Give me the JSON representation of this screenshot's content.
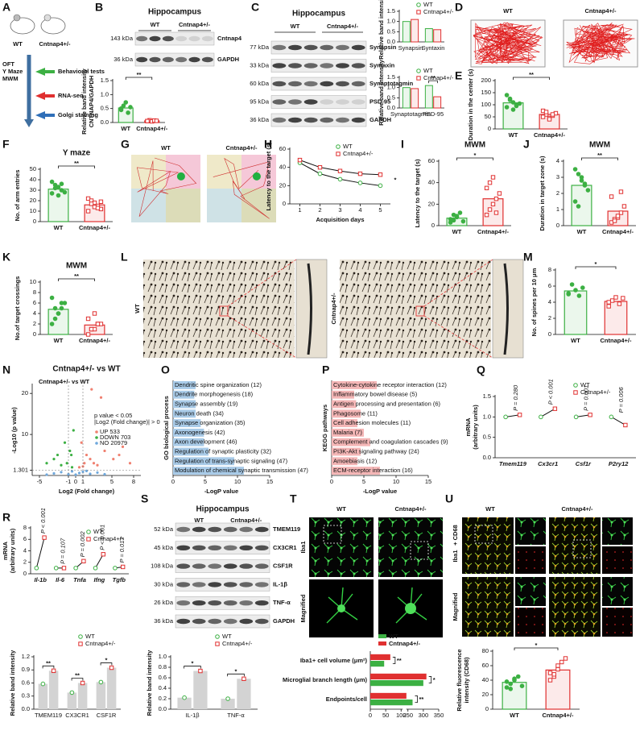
{
  "panel_letters": [
    "A",
    "B",
    "C",
    "D",
    "E",
    "F",
    "G",
    "H",
    "I",
    "J",
    "K",
    "L",
    "M",
    "N",
    "O",
    "P",
    "Q",
    "R",
    "S",
    "T",
    "U"
  ],
  "schematic": {
    "labels": [
      "WT",
      "Cntnap4+/-"
    ],
    "tests": [
      "OFT",
      "Y Maze",
      "MWM"
    ],
    "steps": [
      "Behavioral tests",
      "RNA-seq",
      "Golgi staining"
    ]
  },
  "blots": [
    {
      "title": "Hippocampus",
      "groups": [
        "WT",
        "Cntnap4+/-"
      ],
      "rows": [
        {
          "kda": "143 kDa",
          "name": "Cntnap4"
        },
        {
          "kda": "36 kDa",
          "name": "GAPDH"
        }
      ]
    },
    {
      "title": "Hippocampus",
      "groups": [
        "WT",
        "Cntnap4+/-"
      ],
      "rows": [
        {
          "kda": "77 kDa",
          "name": "Synapsin"
        },
        {
          "kda": "33 kDa",
          "name": "Syntaxin"
        },
        {
          "kda": "60 kDa",
          "name": "Synaptotagmin"
        },
        {
          "kda": "95 kDa",
          "name": "PSD-95"
        },
        {
          "kda": "36 kDa",
          "name": "GAPDH"
        }
      ]
    },
    {
      "title": "Hippocampus",
      "groups": [
        "WT",
        "Cntnap4+/-"
      ],
      "rows": [
        {
          "kda": "52 kDa",
          "name": "TMEM119"
        },
        {
          "kda": "45 kDa",
          "name": "CX3CR1"
        },
        {
          "kda": "108 kDa",
          "name": "CSF1R"
        },
        {
          "kda": "30 kDa",
          "name": "IL-1β"
        },
        {
          "kda": "26 kDa",
          "name": "TNF-α"
        },
        {
          "kda": "36 kDa",
          "name": "GAPDH"
        }
      ]
    }
  ],
  "open_field": {
    "labels": [
      "WT",
      "Cntnap4+/-"
    ]
  },
  "maze_traces": {
    "labels": [
      "WT",
      "Cntnap4+/-"
    ]
  },
  "golgi": {
    "labels": [
      "WT",
      "Cntnap4+/-"
    ]
  },
  "iba1_images": {
    "columns": [
      "WT",
      "Cntnap4+/-"
    ],
    "rows": [
      "Iba1",
      "Magnified"
    ]
  },
  "cd68_images": {
    "columns": [
      "WT",
      "Cntnap4+/-"
    ],
    "stain": [
      "Iba1",
      "+ CD68"
    ],
    "rows_label": "Magnified"
  },
  "chart_data": [
    {
      "type": "bar",
      "ylabel": [
        "Relative band intensity",
        "CNTNAP4/GAPDH"
      ],
      "categories": [
        "WT",
        "Cntnap4+/-"
      ],
      "colors": [
        "#3cb043",
        "#e03030"
      ],
      "values": [
        0.52,
        0.06
      ],
      "points": [
        [
          0.45,
          0.6,
          0.72,
          0.35,
          0.55,
          0.5
        ],
        [
          0.05,
          0.08,
          0.04,
          0.07,
          0.06,
          0.05
        ]
      ],
      "ylim": [
        0,
        1.5
      ],
      "yticks": [
        {
          "value": 0,
          "label": "0.0"
        },
        {
          "value": 0.5,
          "label": "0.5"
        },
        {
          "value": 1,
          "label": "1.0"
        },
        {
          "value": 1.5,
          "label": "1.5"
        }
      ],
      "sig": "**"
    },
    {
      "type": "grouped_bar",
      "ylabel": "Relative band intensity",
      "categories": [
        "Synapsin",
        "Syntaxin"
      ],
      "series": [
        {
          "name": "WT",
          "color": "#3cb043",
          "values": [
            1.0,
            0.65
          ]
        },
        {
          "name": "Cntnap4+/-",
          "color": "#e03030",
          "values": [
            1.1,
            0.6
          ]
        }
      ],
      "ylim": [
        0,
        1.5
      ],
      "yticks": [
        {
          "value": 0,
          "label": "0.0"
        },
        {
          "value": 0.5,
          "label": "0.5"
        },
        {
          "value": 1,
          "label": "1.0"
        },
        {
          "value": 1.5,
          "label": "1.5"
        }
      ]
    },
    {
      "type": "grouped_bar",
      "ylabel": "Relative band intensity",
      "categories": [
        "Synaptotagmin",
        "PSD-95"
      ],
      "series": [
        {
          "name": "WT",
          "color": "#3cb043",
          "values": [
            1.0,
            1.1
          ]
        },
        {
          "name": "Cntnap4+/-",
          "color": "#e03030",
          "values": [
            0.95,
            0.55
          ]
        }
      ],
      "ylim": [
        0,
        1.5
      ],
      "yticks": [
        {
          "value": 0,
          "label": "0.0"
        },
        {
          "value": 0.5,
          "label": "0.5"
        },
        {
          "value": 1,
          "label": "1.0"
        },
        {
          "value": 1.5,
          "label": "1.5"
        }
      ],
      "sig": [
        null,
        "**"
      ]
    },
    {
      "type": "bar",
      "ylabel": "Duration in the center (s)",
      "categories": [
        "WT",
        "Cntnap4+/-"
      ],
      "colors": [
        "#3cb043",
        "#e03030"
      ],
      "values": [
        108,
        60
      ],
      "points": [
        [
          140,
          125,
          110,
          95,
          105,
          90,
          120,
          80,
          100
        ],
        [
          75,
          60,
          45,
          55,
          65,
          50,
          70,
          40,
          60
        ]
      ],
      "ylim": [
        0,
        200
      ],
      "yticks": [
        0,
        50,
        100,
        150,
        200
      ],
      "sig": "**"
    },
    {
      "type": "bar",
      "title": "Y maze",
      "ylabel": "No. of arm entries",
      "categories": [
        "WT",
        "Cntnap4+/-"
      ],
      "colors": [
        "#3cb043",
        "#e03030"
      ],
      "values": [
        31,
        16
      ],
      "points": [
        [
          38,
          35,
          33,
          30,
          28,
          27,
          32,
          25,
          36
        ],
        [
          22,
          20,
          18,
          15,
          12,
          10,
          17,
          14,
          13,
          19
        ]
      ],
      "ylim": [
        0,
        50
      ],
      "yticks": [
        0,
        10,
        20,
        30,
        40,
        50
      ],
      "sig": "**"
    },
    {
      "type": "line",
      "xlabel": "Acquisition days",
      "ylabel": "Latency to the target (s)",
      "x": [
        1,
        2,
        3,
        4,
        5
      ],
      "xlim": [
        0.5,
        5.5
      ],
      "xticks": [
        1,
        2,
        3,
        4,
        5
      ],
      "series": [
        {
          "name": "WT",
          "color": "#3cb043",
          "values": [
            45,
            33,
            27,
            23,
            20
          ]
        },
        {
          "name": "Cntnap4+/-",
          "color": "#e03030",
          "values": [
            48,
            40,
            36,
            33,
            32
          ]
        }
      ],
      "ylim": [
        0,
        60
      ],
      "yticks": [
        0,
        20,
        40,
        60
      ],
      "sig": "*"
    },
    {
      "type": "bar",
      "title": "MWM",
      "ylabel": "Latency to the target (s)",
      "categories": [
        "WT",
        "Cntnap4+/-"
      ],
      "colors": [
        "#3cb043",
        "#e03030"
      ],
      "values": [
        7,
        25
      ],
      "points": [
        [
          3,
          5,
          8,
          12,
          4,
          6,
          10,
          9
        ],
        [
          10,
          15,
          20,
          25,
          30,
          35,
          40,
          45,
          12
        ]
      ],
      "ylim": [
        0,
        60
      ],
      "yticks": [
        0,
        20,
        40,
        60
      ],
      "sig": "*"
    },
    {
      "type": "bar",
      "title": "MWM",
      "ylabel": "Duration in target zone (s)",
      "categories": [
        "WT",
        "Cntnap4+/-"
      ],
      "colors": [
        "#3cb043",
        "#e03030"
      ],
      "values": [
        2.5,
        0.9
      ],
      "points": [
        [
          3.5,
          3.2,
          2.8,
          2.5,
          2.2,
          1.5,
          1.2,
          3.0,
          2.6
        ],
        [
          0.2,
          0.4,
          0.5,
          0.8,
          1.2,
          1.8,
          0.3,
          0.6,
          2.1
        ]
      ],
      "ylim": [
        0,
        4
      ],
      "yticks": [
        0,
        1,
        2,
        3,
        4
      ],
      "sig": "**"
    },
    {
      "type": "bar",
      "title": "MWM",
      "ylabel": "No.of target crossings",
      "categories": [
        "WT",
        "Cntnap4+/-"
      ],
      "colors": [
        "#3cb043",
        "#e03030"
      ],
      "values": [
        4.8,
        1.8
      ],
      "points": [
        [
          2,
          3,
          4,
          5,
          6,
          7,
          5,
          4,
          6
        ],
        [
          0,
          1,
          1,
          2,
          2,
          3,
          1,
          4,
          2
        ]
      ],
      "ylim": [
        0,
        10
      ],
      "yticks": [
        0,
        2,
        4,
        6,
        8,
        10
      ],
      "sig": "**"
    },
    {
      "type": "bar",
      "ylabel": "No. of spines per 10 μm",
      "categories": [
        "WT",
        "Cntnap4+/-"
      ],
      "colors": [
        "#3cb043",
        "#e03030"
      ],
      "values": [
        5.4,
        4.1
      ],
      "points": [
        [
          5,
          6.2,
          5.5,
          4.8,
          5.8,
          5.1
        ],
        [
          3.5,
          4.2,
          4.6,
          3.8,
          4.5,
          4.0
        ]
      ],
      "ylim": [
        0,
        8
      ],
      "yticks": [
        0,
        2,
        4,
        6,
        8
      ],
      "sig": "*"
    },
    {
      "type": "volcano",
      "title": "Cntnap4+/- vs WT",
      "xlabel": "Log2 (Fold change)",
      "ylabel": "-Log10 (p value)",
      "annotation": [
        "p value < 0.05",
        "|Log2 (Fold change)| > 0"
      ],
      "series": [
        {
          "name": "UP 533",
          "color": "#f08070",
          "x": [
            0.5,
            1.2,
            2,
            3,
            1.5,
            0.8,
            2.5,
            4,
            5.2,
            6,
            7.5,
            3.5,
            1,
            2.2,
            6.5
          ],
          "y": [
            2,
            3,
            4,
            2.5,
            5,
            8,
            3,
            6,
            4,
            5,
            3,
            19,
            2.2,
            21,
            7
          ]
        },
        {
          "name": "DOWN 703",
          "color": "#3cb043",
          "x": [
            -0.5,
            -1.2,
            -2,
            -3,
            -0.8,
            -1.5,
            -4,
            -2.5,
            -0.3,
            -0.6
          ],
          "y": [
            2,
            3,
            2.5,
            4,
            6,
            8,
            3,
            5,
            11,
            5
          ]
        },
        {
          "name": "NO 20979",
          "color": "#6fa8dc",
          "x": [
            -3,
            -2,
            -1,
            -0.5,
            0,
            0.5,
            1,
            2,
            3,
            4,
            -4,
            1.5
          ],
          "y": [
            0.5,
            0.8,
            0.3,
            1,
            0.2,
            0.6,
            0.9,
            0.4,
            0.7,
            0.3,
            0.2,
            1.1
          ]
        }
      ],
      "xlim": [
        -6,
        9
      ],
      "xticks": [
        -5,
        -1,
        0,
        1,
        5,
        8
      ],
      "ylim": [
        0,
        22
      ],
      "yticks": [
        1.301,
        10,
        20
      ]
    },
    {
      "type": "hbar",
      "ylabel": "GO biological process",
      "xlabel": "-LogP value",
      "categories": [
        "Dendritic spine organization (12)",
        "Dendrite morphogenesis (18)",
        "Synapse assembly (19)",
        "Neuron death (34)",
        "Synapse organization (35)",
        "Axonogenesis (42)",
        "Axon development (46)",
        "Regulation of synaptic plasticity (32)",
        "Regulation of trans-synaptic signaling (47)",
        "Modulation of chemical synaptic transmission (47)"
      ],
      "values": [
        3.5,
        3.3,
        3.5,
        3.5,
        4.3,
        4.8,
        4.8,
        5.5,
        9.5,
        11
      ],
      "color": "#a9cbe8",
      "xlim": [
        0,
        15
      ],
      "xticks": [
        0,
        5,
        10,
        15
      ]
    },
    {
      "type": "hbar",
      "ylabel": "KEGG pathways",
      "xlabel": "-LogP value",
      "categories": [
        "Cytokine-cytokine receptor interaction (12)",
        "Inflammatory bowel disease (5)",
        "Antigen processing and presentation (6)",
        "Phagosome (11)",
        "Cell adhesion molecules (11)",
        "Malaria (7)",
        "Complement and coagulation cascades (9)",
        "PI3K-Akt signaling pathway (24)",
        "Amoebiasis (12)",
        "ECM-receptor interaction (16)"
      ],
      "values": [
        7,
        3.5,
        3.8,
        4.5,
        4,
        5,
        6,
        4.5,
        4,
        7.5
      ],
      "color": "#f4b6b6",
      "xlim": [
        0,
        15
      ],
      "xticks": [
        0,
        5,
        10,
        15
      ]
    },
    {
      "type": "paired",
      "ylabel": [
        "mRNA",
        "(arbitrary units)"
      ],
      "categories": [
        "Tmem119",
        "Cx3cr1",
        "Csf1r",
        "P2ry12"
      ],
      "series": [
        {
          "name": "WT",
          "color": "#3cb043",
          "values": [
            1,
            1,
            1,
            1
          ]
        },
        {
          "name": "Cntnap4+/-",
          "color": "#e03030",
          "values": [
            1.05,
            1.2,
            1.05,
            0.8
          ]
        }
      ],
      "p_labels": [
        "P = 0.280",
        "P < 0.001",
        "P = 0.001",
        "P = 0.006"
      ],
      "ylim": [
        0,
        1.5
      ],
      "yticks": [
        {
          "value": 0,
          "label": "0.0"
        },
        {
          "value": 0.5,
          "label": "0.5"
        },
        {
          "value": 1,
          "label": "1.0"
        },
        {
          "value": 1.5,
          "label": "1.5"
        }
      ]
    },
    {
      "type": "paired",
      "ylabel": [
        "mRNA",
        "(arbitrary units)"
      ],
      "categories": [
        "Il-1b",
        "Il-6",
        "Tnfa",
        "Ifng",
        "Tgfb"
      ],
      "series": [
        {
          "name": "WT",
          "color": "#3cb043",
          "values": [
            1,
            1,
            1,
            1,
            1
          ]
        },
        {
          "name": "Cntnap4+/-",
          "color": "#e03030",
          "values": [
            6.3,
            1.0,
            2.2,
            3.4,
            1.2
          ]
        }
      ],
      "p_labels": [
        "P < 0.001",
        "P = 0.107",
        "P = 0.002",
        "P < 0.001",
        "P = 0.013"
      ],
      "ylim": [
        0,
        8
      ],
      "yticks": [
        0,
        2,
        4,
        6,
        8
      ]
    },
    {
      "type": "grouped_bar",
      "ylabel": "Relative band intensity",
      "bar_color": "#d3d3d3",
      "categories": [
        "TMEM119",
        "CX3CR1",
        "CSF1R"
      ],
      "series": [
        {
          "name": "WT",
          "color": "#3cb043",
          "values": [
            0.58,
            0.38,
            0.62
          ]
        },
        {
          "name": "Cntnap4+/-",
          "color": "#e03030",
          "values": [
            0.88,
            0.6,
            0.95
          ]
        }
      ],
      "ylim": [
        0,
        1.2
      ],
      "yticks": [
        {
          "value": 0,
          "label": "0.0"
        },
        {
          "value": 0.3,
          "label": "0.3"
        },
        {
          "value": 0.6,
          "label": "0.6"
        },
        {
          "value": 0.9,
          "label": "0.9"
        },
        {
          "value": 1.2,
          "label": "1.2"
        }
      ],
      "sig": [
        "**",
        "**",
        "*"
      ]
    },
    {
      "type": "grouped_bar",
      "ylabel": "Relative band intensity",
      "bar_color": "#d3d3d3",
      "categories": [
        "IL-1β",
        "TNF-α"
      ],
      "series": [
        {
          "name": "WT",
          "color": "#3cb043",
          "values": [
            0.22,
            0.2
          ]
        },
        {
          "name": "Cntnap4+/-",
          "color": "#e03030",
          "values": [
            0.73,
            0.58
          ]
        }
      ],
      "ylim": [
        0,
        1
      ],
      "yticks": [
        {
          "value": 0,
          "label": "0.0"
        },
        {
          "value": 0.2,
          "label": "0.2"
        },
        {
          "value": 0.4,
          "label": "0.4"
        },
        {
          "value": 0.6,
          "label": "0.6"
        },
        {
          "value": 0.8,
          "label": "0.8"
        },
        {
          "value": 1,
          "label": "1.0"
        }
      ],
      "sig": [
        "*",
        "*"
      ]
    },
    {
      "type": "hbar_grouped",
      "categories": [
        "Iba1+ cell volume (μm²)",
        "Microglial branch length (μm)",
        "Endpoints/cell"
      ],
      "series": [
        {
          "name": "WT",
          "color": "#3cb043",
          "values": [
            45,
            300,
            265
          ]
        },
        {
          "name": "Cntnap4+/-",
          "color": "#e03030",
          "values": [
            65,
            310,
            245
          ]
        }
      ],
      "xlim": [
        0,
        350
      ],
      "xticks": [
        0,
        50,
        100,
        250,
        300,
        350
      ],
      "axis_break": [
        100,
        250
      ],
      "sig": [
        "**",
        "*",
        "**"
      ]
    },
    {
      "type": "bar",
      "ylabel": [
        "Relative fluorescence",
        "intensity (CD68)"
      ],
      "categories": [
        "WT",
        "Cntnap4+/-"
      ],
      "colors": [
        "#3cb043",
        "#e03030"
      ],
      "values": [
        37,
        54
      ],
      "points": [
        [
          30,
          35,
          40,
          45,
          32,
          38,
          28,
          42
        ],
        [
          40,
          45,
          55,
          65,
          70,
          50,
          48,
          60
        ]
      ],
      "ylim": [
        0,
        80
      ],
      "yticks": [
        0,
        20,
        40,
        60,
        80
      ],
      "sig": "*"
    }
  ]
}
